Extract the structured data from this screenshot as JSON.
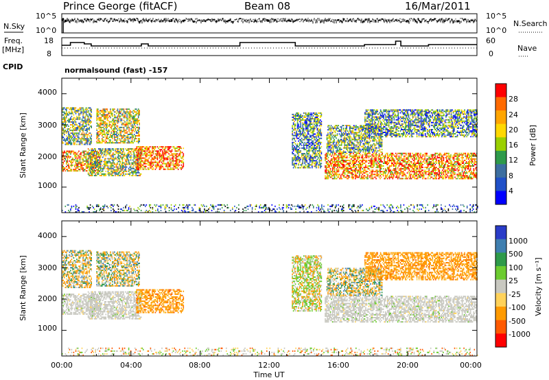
{
  "header": {
    "title": "Prince George (fitACF)",
    "beam": "Beam 08",
    "date": "16/Mar/2011"
  },
  "strips": {
    "nsky_label": "N.Sky",
    "nsearch_label": "N.Search",
    "nsky_ticks": [
      "10^5",
      "10^0"
    ],
    "nsearch_ticks": [
      "10^5",
      "10^0"
    ],
    "freq_label": "Freq.",
    "freq_unit": "[MHz]",
    "freq_ticks": [
      "18",
      "8"
    ],
    "nave_label": "Nave",
    "nave_ticks": [
      "60",
      "0"
    ],
    "cpid_label": "CPID",
    "cpid_value": "normalsound (fast) -157"
  },
  "panels": {
    "ylabel": "Slant Range [km]",
    "yticks": [
      "4000",
      "3000",
      "2000",
      "1000"
    ],
    "xlabel": "Time UT",
    "xticks": [
      "00:00",
      "04:00",
      "08:00",
      "12:00",
      "16:00",
      "20:00",
      "00:00"
    ]
  },
  "colorbars": {
    "power": {
      "label": "Power [dB]",
      "ticks": [
        "28",
        "24",
        "20",
        "16",
        "12",
        "8",
        "4"
      ],
      "colors": [
        "#ff0000",
        "#ff6a00",
        "#ffa500",
        "#ffd800",
        "#9ad000",
        "#2e9a4a",
        "#3c6ea0",
        "#2050c8",
        "#0000ff"
      ]
    },
    "velocity": {
      "label": "Velocity [m s⁻¹]",
      "ticks": [
        "1000",
        "500",
        "100",
        "25",
        "-25",
        "-100",
        "-500",
        "-1000"
      ],
      "colors": [
        "#2a3cc8",
        "#3f7fb0",
        "#2e9a4a",
        "#6ccc30",
        "#c8c8c0",
        "#ffd25a",
        "#ff9a00",
        "#ff5a00",
        "#ff0000"
      ]
    }
  },
  "chart_data": {
    "type": "heatmap",
    "title": "Prince George (fitACF)",
    "x_range_hours": [
      0,
      24
    ],
    "y_range_km": [
      180,
      4500
    ],
    "regions": [
      {
        "t0": 0.0,
        "t1": 1.7,
        "r0": 2350,
        "r1": 3550,
        "pw": 0.45,
        "vel": "mixed-orange"
      },
      {
        "t0": 0.0,
        "t1": 2.2,
        "r0": 1500,
        "r1": 2150,
        "pw": 0.7,
        "vel": "gray"
      },
      {
        "t0": 1.5,
        "t1": 4.6,
        "r0": 1350,
        "r1": 2250,
        "pw": 0.5,
        "vel": "gray"
      },
      {
        "t0": 2.0,
        "t1": 4.5,
        "r0": 2400,
        "r1": 3500,
        "pw": 0.55,
        "vel": "mixed-orange"
      },
      {
        "t0": 4.3,
        "t1": 7.0,
        "r0": 1550,
        "r1": 2300,
        "pw": 0.8,
        "vel": "orange"
      },
      {
        "t0": 13.3,
        "t1": 15.0,
        "r0": 1600,
        "r1": 3400,
        "pw": 0.35,
        "vel": "green-diag"
      },
      {
        "t0": 15.2,
        "t1": 24.0,
        "r0": 1250,
        "r1": 2100,
        "pw": 0.75,
        "vel": "gray"
      },
      {
        "t0": 15.3,
        "t1": 18.5,
        "r0": 2100,
        "r1": 3000,
        "pw": 0.4,
        "vel": "mixed-orange"
      },
      {
        "t0": 17.5,
        "t1": 24.0,
        "r0": 2600,
        "r1": 3500,
        "pw": 0.35,
        "vel": "orange"
      },
      {
        "t0": 0.0,
        "t1": 24.0,
        "r0": 180,
        "r1": 450,
        "pw": 0.3,
        "vel": "ground"
      }
    ]
  }
}
